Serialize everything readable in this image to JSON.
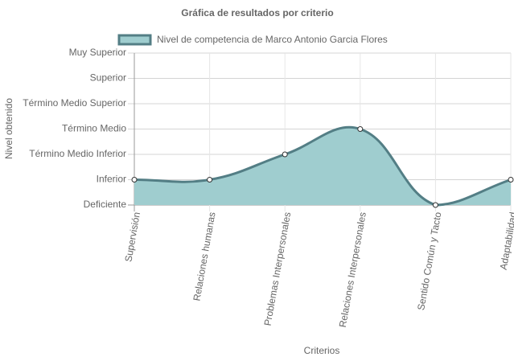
{
  "chart_data": {
    "type": "line",
    "title": "Gráfica de resultados por criterio",
    "x_label": "Criterios",
    "y_label": "Nivel obtenido",
    "categories": [
      "Supervisión",
      "Relaciones humanas",
      "Problemas Interpersonales",
      "Relaciones Interpersonales",
      "Sentido Común y Tacto",
      "Adaptabilidad"
    ],
    "series": [
      {
        "name": "Nivel de competencia de Marco Antonio Garcia Flores",
        "color": "#537e85",
        "fill": "#9fcdcf",
        "values": [
          1,
          1,
          2,
          3,
          0,
          1
        ]
      }
    ],
    "ylim": [
      0,
      6
    ],
    "yticks": [
      {
        "value": 0,
        "label": "Deficiente"
      },
      {
        "value": 1,
        "label": "Inferior"
      },
      {
        "value": 2,
        "label": "Término Medio Inferior"
      },
      {
        "value": 3,
        "label": "Término Medio"
      },
      {
        "value": 4,
        "label": "Término Medio Superior"
      },
      {
        "value": 5,
        "label": "Superior"
      },
      {
        "value": 6,
        "label": "Muy Superior"
      }
    ],
    "grid": true
  }
}
